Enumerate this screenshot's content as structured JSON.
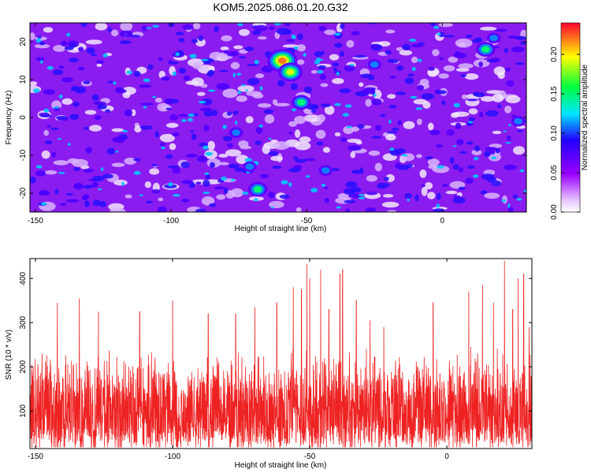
{
  "figure": {
    "title": "KOM5.2025.086.01.20.G32"
  },
  "chart_data": [
    {
      "type": "heatmap",
      "title": "KOM5.2025.086.01.20.G32",
      "xlabel": "Height of straight line (km)",
      "ylabel": "Frequency (Hz)",
      "xlim": [
        -152,
        31
      ],
      "ylim": [
        -25,
        25
      ],
      "xticks": [
        -150,
        -100,
        -50,
        0
      ],
      "yticks": [
        -20,
        -10,
        0,
        10,
        20
      ],
      "colorbar": {
        "label": "Normalized spectral amplitude",
        "range": [
          0,
          0.24
        ],
        "ticks": [
          0,
          0.05,
          0.1,
          0.15,
          0.2
        ],
        "tick_labels": [
          "0.00",
          "0.05",
          "0.10",
          "0.15",
          "0.20"
        ],
        "colors": [
          "#ffffff",
          "#9a00ff",
          "#2200ff",
          "#00e5ff",
          "#00ff40",
          "#ffff00",
          "#ff0033"
        ]
      },
      "peaks": [
        {
          "x": -59,
          "y": 15,
          "value": 0.22
        },
        {
          "x": -56,
          "y": 12,
          "value": 0.2
        },
        {
          "x": -52,
          "y": 4,
          "value": 0.15
        },
        {
          "x": -68,
          "y": -19,
          "value": 0.17
        },
        {
          "x": -71,
          "y": -13,
          "value": 0.12
        },
        {
          "x": -43,
          "y": -14,
          "value": 0.12
        },
        {
          "x": 16,
          "y": 18,
          "value": 0.17
        },
        {
          "x": 19,
          "y": 21,
          "value": 0.13
        },
        {
          "x": -25,
          "y": 14,
          "value": 0.1
        },
        {
          "x": 28,
          "y": -1,
          "value": 0.1
        },
        {
          "x": -98,
          "y": -14,
          "value": 0.09
        },
        {
          "x": -76,
          "y": -4,
          "value": 0.1
        },
        {
          "x": -99,
          "y": 0,
          "value": 0.08
        },
        {
          "x": 3,
          "y": -4,
          "value": 0.08
        },
        {
          "x": 25,
          "y": 9,
          "value": 0.08
        }
      ]
    },
    {
      "type": "line",
      "xlabel": "Height of straight line (km)",
      "ylabel": "SNR (10 * v/v)",
      "xlim": [
        -152,
        31
      ],
      "ylim": [
        15,
        445
      ],
      "xticks": [
        -150,
        -100,
        -50,
        0
      ],
      "yticks": [
        100,
        200,
        300,
        400
      ],
      "series": [
        {
          "color": "#ee2222",
          "baseline": 110,
          "typical_max": 240,
          "spikes": [
            {
              "x": -152,
              "y": 260
            },
            {
              "x": -142,
              "y": 345
            },
            {
              "x": -134,
              "y": 355
            },
            {
              "x": -127,
              "y": 325
            },
            {
              "x": -112,
              "y": 325
            },
            {
              "x": -100,
              "y": 350
            },
            {
              "x": -87,
              "y": 320
            },
            {
              "x": -77,
              "y": 320
            },
            {
              "x": -70,
              "y": 335
            },
            {
              "x": -62,
              "y": 345
            },
            {
              "x": -56,
              "y": 380
            },
            {
              "x": -53,
              "y": 375
            },
            {
              "x": -51,
              "y": 432
            },
            {
              "x": -50,
              "y": 400
            },
            {
              "x": -46,
              "y": 420
            },
            {
              "x": -43,
              "y": 330
            },
            {
              "x": -39,
              "y": 410
            },
            {
              "x": -38,
              "y": 420
            },
            {
              "x": -33,
              "y": 350
            },
            {
              "x": -28,
              "y": 305
            },
            {
              "x": -23,
              "y": 290
            },
            {
              "x": -5,
              "y": 345
            },
            {
              "x": 8,
              "y": 370
            },
            {
              "x": 13,
              "y": 385
            },
            {
              "x": 17,
              "y": 345
            },
            {
              "x": 21,
              "y": 440
            },
            {
              "x": 24,
              "y": 330
            },
            {
              "x": 26,
              "y": 400
            },
            {
              "x": 28,
              "y": 410
            },
            {
              "x": 30,
              "y": 290
            }
          ]
        }
      ]
    }
  ]
}
